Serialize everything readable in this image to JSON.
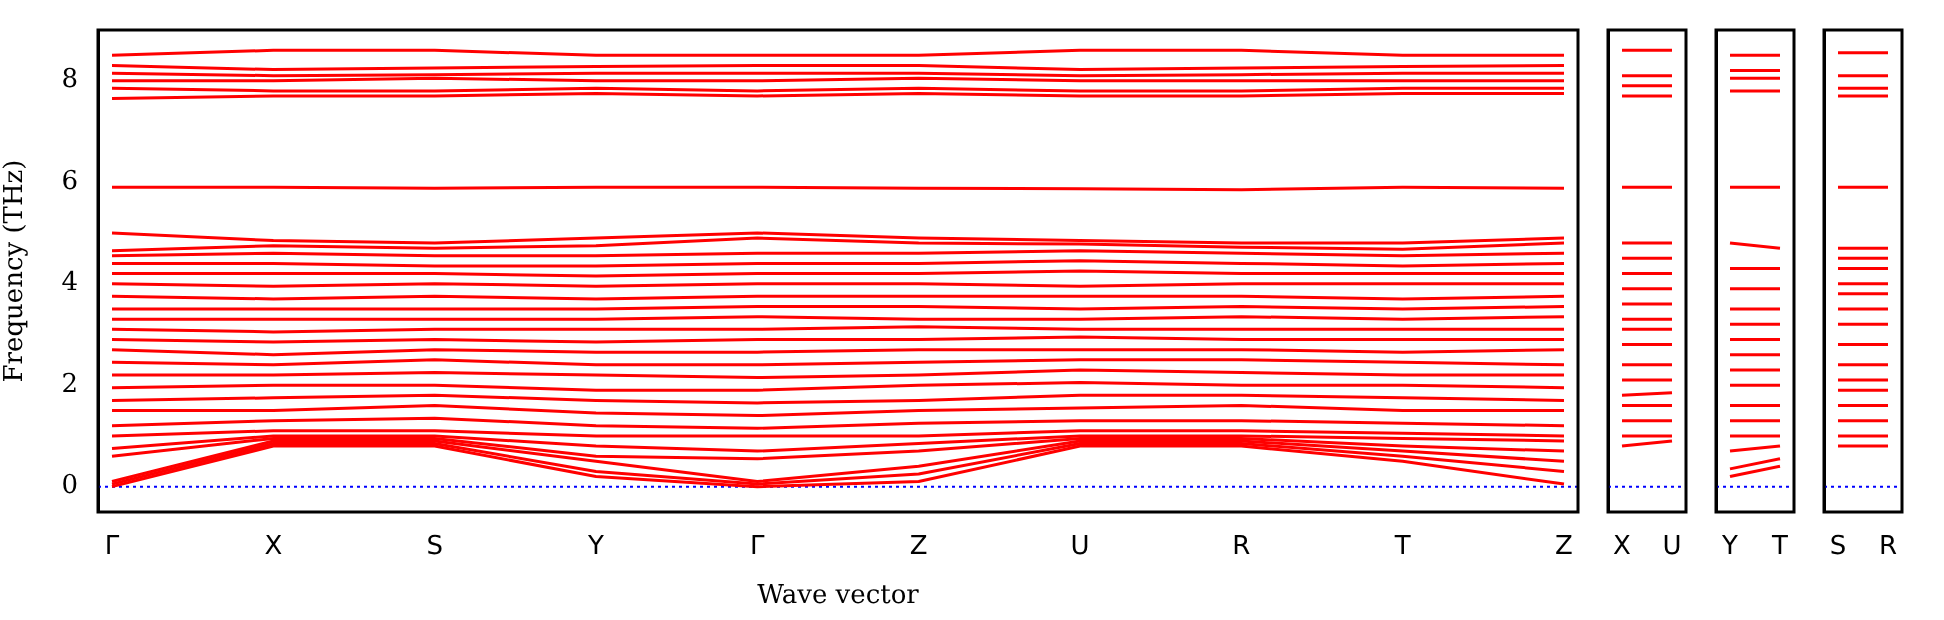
{
  "chart_data": [
    {
      "type": "line",
      "xlabel": "Wave vector",
      "ylabel": "Frequency (THz)",
      "categories": [
        "Γ",
        "X",
        "S",
        "Y",
        "Γ",
        "Z",
        "U",
        "R",
        "T",
        "Z"
      ],
      "ylim": [
        -0.5,
        9
      ],
      "yticks": [
        0,
        2,
        4,
        6,
        8
      ],
      "grid": false,
      "legend": false,
      "marker": "none",
      "line_style": "solid",
      "ref_lines": [
        {
          "axis": "y",
          "value": 0,
          "color": "#0000ff",
          "line_style": "dotted"
        }
      ],
      "series": [
        {
          "color": "#ff0000",
          "values": [
            0,
            0.8,
            0.8,
            0.2,
            0,
            0.1,
            0.8,
            0.8,
            0.5,
            0.05
          ]
        },
        {
          "color": "#ff0000",
          "values": [
            0.05,
            0.85,
            0.85,
            0.3,
            0.05,
            0.25,
            0.85,
            0.85,
            0.6,
            0.3
          ]
        },
        {
          "color": "#ff0000",
          "values": [
            0.1,
            0.9,
            0.9,
            0.5,
            0.1,
            0.4,
            0.9,
            0.9,
            0.7,
            0.5
          ]
        },
        {
          "color": "#ff0000",
          "values": [
            0.6,
            0.95,
            0.95,
            0.6,
            0.55,
            0.7,
            0.95,
            0.95,
            0.8,
            0.7
          ]
        },
        {
          "color": "#ff0000",
          "values": [
            0.75,
            1.0,
            1.0,
            0.8,
            0.7,
            0.85,
            1.0,
            1.0,
            0.95,
            0.9
          ]
        },
        {
          "color": "#ff0000",
          "values": [
            1.0,
            1.1,
            1.1,
            1.0,
            1.0,
            1.0,
            1.1,
            1.1,
            1.05,
            1.0
          ]
        },
        {
          "color": "#ff0000",
          "values": [
            1.2,
            1.3,
            1.35,
            1.2,
            1.15,
            1.25,
            1.3,
            1.3,
            1.25,
            1.2
          ]
        },
        {
          "color": "#ff0000",
          "values": [
            1.5,
            1.5,
            1.6,
            1.45,
            1.4,
            1.5,
            1.55,
            1.6,
            1.5,
            1.5
          ]
        },
        {
          "color": "#ff0000",
          "values": [
            1.7,
            1.75,
            1.8,
            1.7,
            1.65,
            1.7,
            1.8,
            1.8,
            1.75,
            1.7
          ]
        },
        {
          "color": "#ff0000",
          "values": [
            1.95,
            2.0,
            2.0,
            1.9,
            1.9,
            2.0,
            2.05,
            2.0,
            2.0,
            1.95
          ]
        },
        {
          "color": "#ff0000",
          "values": [
            2.2,
            2.2,
            2.25,
            2.2,
            2.15,
            2.2,
            2.3,
            2.25,
            2.2,
            2.2
          ]
        },
        {
          "color": "#ff0000",
          "values": [
            2.45,
            2.4,
            2.5,
            2.4,
            2.4,
            2.45,
            2.5,
            2.5,
            2.45,
            2.4
          ]
        },
        {
          "color": "#ff0000",
          "values": [
            2.7,
            2.6,
            2.7,
            2.65,
            2.65,
            2.7,
            2.7,
            2.7,
            2.65,
            2.7
          ]
        },
        {
          "color": "#ff0000",
          "values": [
            2.9,
            2.85,
            2.9,
            2.85,
            2.9,
            2.9,
            2.95,
            2.9,
            2.9,
            2.9
          ]
        },
        {
          "color": "#ff0000",
          "values": [
            3.1,
            3.05,
            3.1,
            3.1,
            3.1,
            3.15,
            3.1,
            3.1,
            3.1,
            3.1
          ]
        },
        {
          "color": "#ff0000",
          "values": [
            3.3,
            3.3,
            3.3,
            3.3,
            3.35,
            3.3,
            3.3,
            3.35,
            3.3,
            3.35
          ]
        },
        {
          "color": "#ff0000",
          "values": [
            3.5,
            3.5,
            3.5,
            3.5,
            3.55,
            3.55,
            3.5,
            3.55,
            3.5,
            3.55
          ]
        },
        {
          "color": "#ff0000",
          "values": [
            3.75,
            3.7,
            3.75,
            3.7,
            3.75,
            3.75,
            3.75,
            3.75,
            3.7,
            3.75
          ]
        },
        {
          "color": "#ff0000",
          "values": [
            4.0,
            3.95,
            4.0,
            3.95,
            4.0,
            4.0,
            3.95,
            4.0,
            4.0,
            4.0
          ]
        },
        {
          "color": "#ff0000",
          "values": [
            4.2,
            4.2,
            4.2,
            4.15,
            4.2,
            4.2,
            4.25,
            4.2,
            4.2,
            4.2
          ]
        },
        {
          "color": "#ff0000",
          "values": [
            4.4,
            4.4,
            4.35,
            4.35,
            4.4,
            4.4,
            4.45,
            4.4,
            4.35,
            4.4
          ]
        },
        {
          "color": "#ff0000",
          "values": [
            4.55,
            4.6,
            4.55,
            4.55,
            4.6,
            4.6,
            4.65,
            4.6,
            4.55,
            4.6
          ]
        },
        {
          "color": "#ff0000",
          "values": [
            4.65,
            4.75,
            4.7,
            4.75,
            4.9,
            4.8,
            4.78,
            4.72,
            4.68,
            4.8
          ]
        },
        {
          "color": "#ff0000",
          "values": [
            5.0,
            4.85,
            4.8,
            4.9,
            5.0,
            4.9,
            4.85,
            4.8,
            4.8,
            4.9
          ]
        },
        {
          "color": "#ff0000",
          "values": [
            5.9,
            5.9,
            5.88,
            5.9,
            5.9,
            5.88,
            5.87,
            5.85,
            5.9,
            5.88
          ]
        },
        {
          "color": "#ff0000",
          "values": [
            7.65,
            7.7,
            7.7,
            7.75,
            7.7,
            7.75,
            7.7,
            7.7,
            7.75,
            7.75
          ]
        },
        {
          "color": "#ff0000",
          "values": [
            7.85,
            7.8,
            7.8,
            7.85,
            7.8,
            7.85,
            7.8,
            7.8,
            7.85,
            7.85
          ]
        },
        {
          "color": "#ff0000",
          "values": [
            8.0,
            8.0,
            8.05,
            8.0,
            8.0,
            8.05,
            8.0,
            8.0,
            8.0,
            8.0
          ]
        },
        {
          "color": "#ff0000",
          "values": [
            8.15,
            8.1,
            8.12,
            8.15,
            8.15,
            8.15,
            8.1,
            8.12,
            8.15,
            8.15
          ]
        },
        {
          "color": "#ff0000",
          "values": [
            8.3,
            8.22,
            8.25,
            8.28,
            8.3,
            8.3,
            8.22,
            8.25,
            8.28,
            8.3
          ]
        },
        {
          "color": "#ff0000",
          "values": [
            8.5,
            8.6,
            8.6,
            8.5,
            8.5,
            8.5,
            8.6,
            8.6,
            8.5,
            8.5
          ]
        }
      ]
    },
    {
      "type": "line",
      "categories": [
        "X",
        "U"
      ],
      "ylim": [
        -0.5,
        9
      ],
      "yticks": [
        0,
        2,
        4,
        6,
        8
      ],
      "tick_labels": "x",
      "grid": false,
      "legend": false,
      "marker": "none",
      "line_style": "solid",
      "ref_lines": [
        {
          "axis": "y",
          "value": 0,
          "color": "#0000ff",
          "line_style": "dotted"
        }
      ],
      "series": [
        {
          "color": "#ff0000",
          "values": [
            0.8,
            0.9
          ]
        },
        {
          "color": "#ff0000",
          "values": [
            1.0,
            1.0
          ]
        },
        {
          "color": "#ff0000",
          "values": [
            1.3,
            1.3
          ]
        },
        {
          "color": "#ff0000",
          "values": [
            1.6,
            1.6
          ]
        },
        {
          "color": "#ff0000",
          "values": [
            1.8,
            1.85
          ]
        },
        {
          "color": "#ff0000",
          "values": [
            2.1,
            2.1
          ]
        },
        {
          "color": "#ff0000",
          "values": [
            2.4,
            2.4
          ]
        },
        {
          "color": "#ff0000",
          "values": [
            2.8,
            2.8
          ]
        },
        {
          "color": "#ff0000",
          "values": [
            3.1,
            3.1
          ]
        },
        {
          "color": "#ff0000",
          "values": [
            3.3,
            3.3
          ]
        },
        {
          "color": "#ff0000",
          "values": [
            3.6,
            3.6
          ]
        },
        {
          "color": "#ff0000",
          "values": [
            3.9,
            3.9
          ]
        },
        {
          "color": "#ff0000",
          "values": [
            4.2,
            4.2
          ]
        },
        {
          "color": "#ff0000",
          "values": [
            4.5,
            4.5
          ]
        },
        {
          "color": "#ff0000",
          "values": [
            4.8,
            4.8
          ]
        },
        {
          "color": "#ff0000",
          "values": [
            5.9,
            5.9
          ]
        },
        {
          "color": "#ff0000",
          "values": [
            7.7,
            7.7
          ]
        },
        {
          "color": "#ff0000",
          "values": [
            7.9,
            7.9
          ]
        },
        {
          "color": "#ff0000",
          "values": [
            8.1,
            8.1
          ]
        },
        {
          "color": "#ff0000",
          "values": [
            8.6,
            8.6
          ]
        }
      ]
    },
    {
      "type": "line",
      "categories": [
        "Y",
        "T"
      ],
      "ylim": [
        -0.5,
        9
      ],
      "yticks": [
        0,
        2,
        4,
        6,
        8
      ],
      "tick_labels": "x",
      "grid": false,
      "legend": false,
      "marker": "none",
      "line_style": "solid",
      "ref_lines": [
        {
          "axis": "y",
          "value": 0,
          "color": "#0000ff",
          "line_style": "dotted"
        }
      ],
      "series": [
        {
          "color": "#ff0000",
          "values": [
            0.2,
            0.4
          ]
        },
        {
          "color": "#ff0000",
          "values": [
            0.35,
            0.55
          ]
        },
        {
          "color": "#ff0000",
          "values": [
            0.7,
            0.8
          ]
        },
        {
          "color": "#ff0000",
          "values": [
            1.0,
            1.0
          ]
        },
        {
          "color": "#ff0000",
          "values": [
            1.3,
            1.3
          ]
        },
        {
          "color": "#ff0000",
          "values": [
            1.6,
            1.6
          ]
        },
        {
          "color": "#ff0000",
          "values": [
            2.0,
            2.0
          ]
        },
        {
          "color": "#ff0000",
          "values": [
            2.3,
            2.3
          ]
        },
        {
          "color": "#ff0000",
          "values": [
            2.6,
            2.6
          ]
        },
        {
          "color": "#ff0000",
          "values": [
            2.9,
            2.9
          ]
        },
        {
          "color": "#ff0000",
          "values": [
            3.2,
            3.2
          ]
        },
        {
          "color": "#ff0000",
          "values": [
            3.5,
            3.5
          ]
        },
        {
          "color": "#ff0000",
          "values": [
            3.9,
            3.9
          ]
        },
        {
          "color": "#ff0000",
          "values": [
            4.3,
            4.3
          ]
        },
        {
          "color": "#ff0000",
          "values": [
            4.8,
            4.7
          ]
        },
        {
          "color": "#ff0000",
          "values": [
            5.9,
            5.9
          ]
        },
        {
          "color": "#ff0000",
          "values": [
            7.8,
            7.8
          ]
        },
        {
          "color": "#ff0000",
          "values": [
            8.05,
            8.05
          ]
        },
        {
          "color": "#ff0000",
          "values": [
            8.2,
            8.2
          ]
        },
        {
          "color": "#ff0000",
          "values": [
            8.5,
            8.5
          ]
        }
      ]
    },
    {
      "type": "line",
      "categories": [
        "S",
        "R"
      ],
      "ylim": [
        -0.5,
        9
      ],
      "yticks": [
        0,
        2,
        4,
        6,
        8
      ],
      "tick_labels": "x",
      "grid": false,
      "legend": false,
      "marker": "none",
      "line_style": "solid",
      "ref_lines": [
        {
          "axis": "y",
          "value": 0,
          "color": "#0000ff",
          "line_style": "dotted"
        }
      ],
      "series": [
        {
          "color": "#ff0000",
          "values": [
            0.8,
            0.8
          ]
        },
        {
          "color": "#ff0000",
          "values": [
            1.0,
            1.0
          ]
        },
        {
          "color": "#ff0000",
          "values": [
            1.3,
            1.3
          ]
        },
        {
          "color": "#ff0000",
          "values": [
            1.6,
            1.6
          ]
        },
        {
          "color": "#ff0000",
          "values": [
            1.9,
            1.9
          ]
        },
        {
          "color": "#ff0000",
          "values": [
            2.1,
            2.1
          ]
        },
        {
          "color": "#ff0000",
          "values": [
            2.4,
            2.4
          ]
        },
        {
          "color": "#ff0000",
          "values": [
            2.8,
            2.8
          ]
        },
        {
          "color": "#ff0000",
          "values": [
            3.2,
            3.2
          ]
        },
        {
          "color": "#ff0000",
          "values": [
            3.5,
            3.5
          ]
        },
        {
          "color": "#ff0000",
          "values": [
            3.8,
            3.8
          ]
        },
        {
          "color": "#ff0000",
          "values": [
            4.0,
            4.0
          ]
        },
        {
          "color": "#ff0000",
          "values": [
            4.3,
            4.3
          ]
        },
        {
          "color": "#ff0000",
          "values": [
            4.5,
            4.5
          ]
        },
        {
          "color": "#ff0000",
          "values": [
            4.7,
            4.7
          ]
        },
        {
          "color": "#ff0000",
          "values": [
            5.9,
            5.9
          ]
        },
        {
          "color": "#ff0000",
          "values": [
            7.7,
            7.7
          ]
        },
        {
          "color": "#ff0000",
          "values": [
            7.85,
            7.85
          ]
        },
        {
          "color": "#ff0000",
          "values": [
            8.1,
            8.1
          ]
        },
        {
          "color": "#ff0000",
          "values": [
            8.55,
            8.55
          ]
        }
      ]
    }
  ]
}
